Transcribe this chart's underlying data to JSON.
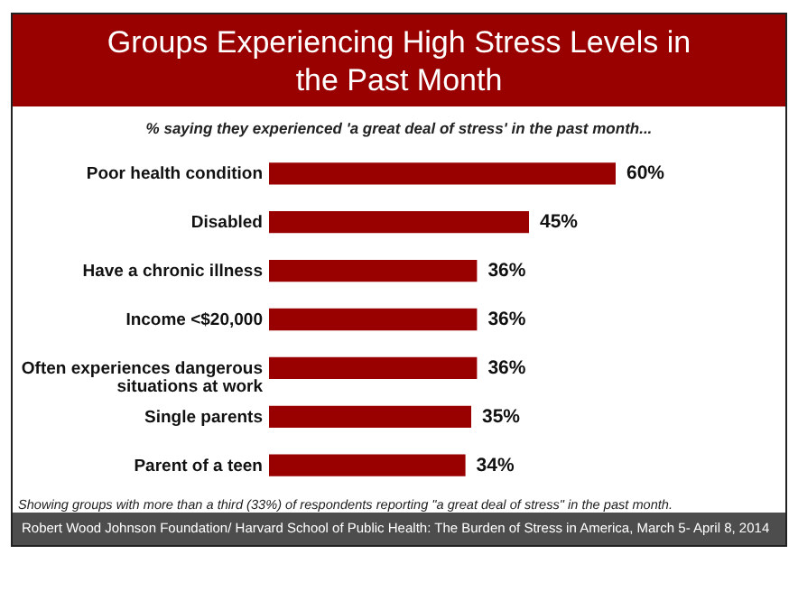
{
  "chart_data": {
    "type": "bar",
    "orientation": "horizontal",
    "title": "Groups Experiencing High Stress Levels in the Past Month",
    "subtitle": "% saying they experienced 'a great deal of stress' in the past month...",
    "categories": [
      "Poor health condition",
      "Disabled",
      "Have a chronic illness",
      "Income <$20,000",
      "Often experiences dangerous situations at work",
      "Single parents",
      "Parent of a teen"
    ],
    "values": [
      60,
      45,
      36,
      36,
      36,
      35,
      34
    ],
    "value_labels": [
      "60%",
      "45%",
      "36%",
      "36%",
      "36%",
      "35%",
      "34%"
    ],
    "color": "#990000",
    "annotations": [
      "Showing groups with more than a third (33%) of respondents  reporting  \"a great deal of stress\" in the past  month.",
      "Robert Wood Johnson Foundation/ Harvard School of Public Health: The Burden of Stress in America, March 5- April 8, 2014"
    ]
  }
}
